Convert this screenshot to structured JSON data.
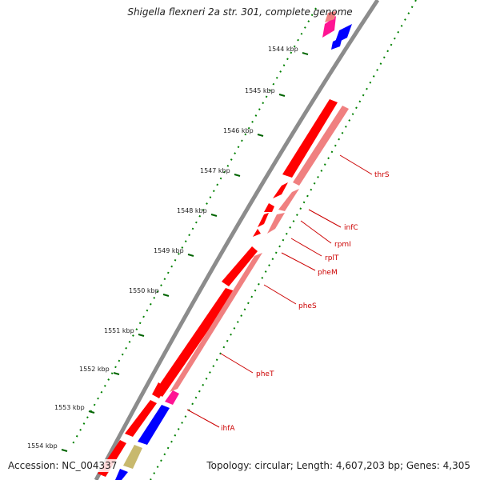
{
  "title": "Shigella flexneri 2a str. 301, complete genome",
  "footer": {
    "accession": "Accession: NC_004337",
    "summary": "Topology: circular; Length: 4,607,203 bp; Genes: 4,305"
  },
  "colors": {
    "backbone": "#8c8c8c",
    "forward_cds": "#ff0000",
    "reverse_cds": "#f08080",
    "blue_feature": "#0000ff",
    "magenta_feature": "#ff1493",
    "olive_feature": "#c8b96e",
    "gc_dots": "#008000",
    "label_line": "#cc0000"
  },
  "ruler": [
    "1544 kbp",
    "1545 kbp",
    "1546 kbp",
    "1547 kbp",
    "1548 kbp",
    "1549 kbp",
    "1550 kbp",
    "1551 kbp",
    "1552 kbp",
    "1553 kbp",
    "1554 kbp"
  ],
  "gene_labels": [
    "thrS",
    "infC",
    "rpmI",
    "rplT",
    "pheM",
    "pheS",
    "pheT",
    "ihfA"
  ]
}
